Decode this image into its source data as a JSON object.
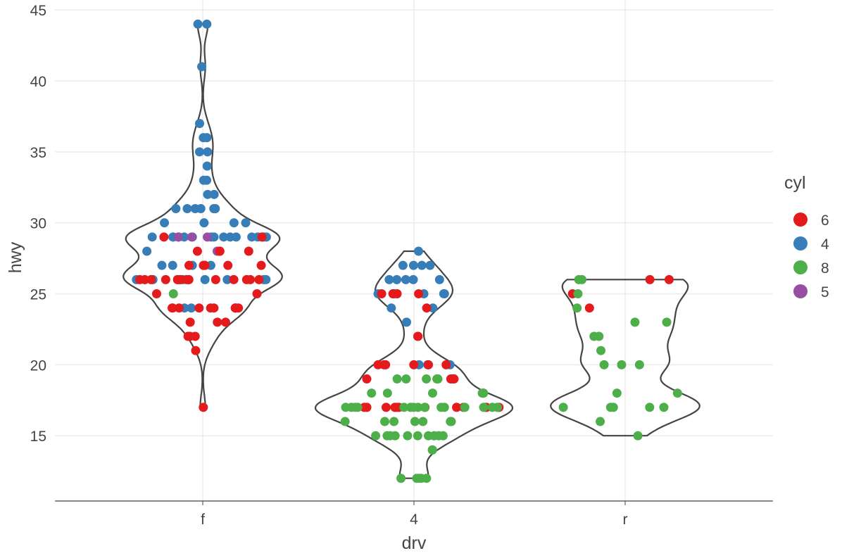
{
  "chart_data": {
    "type": "violin",
    "title": "",
    "xlabel": "drv",
    "ylabel": "hwy",
    "categories": [
      "f",
      "4",
      "r"
    ],
    "yticks": [
      15,
      20,
      25,
      30,
      35,
      40,
      45
    ],
    "ylim": [
      10.4,
      45.7
    ],
    "grid": true,
    "legend": {
      "title": "cyl",
      "placement": "right",
      "entries": [
        {
          "label": "6",
          "color": "#E41A1C"
        },
        {
          "label": "4",
          "color": "#377EB8"
        },
        {
          "label": "8",
          "color": "#4DAF4A"
        },
        {
          "label": "5",
          "color": "#984EA3"
        }
      ]
    },
    "violin_color": "#444444",
    "points": {
      "f": {
        "4": [
          44,
          44,
          41,
          37,
          36,
          36,
          35,
          35,
          34,
          33,
          33,
          32,
          32,
          31,
          31,
          31,
          31,
          31,
          31,
          31,
          30,
          30,
          30,
          30,
          29,
          29,
          29,
          29,
          29,
          29,
          29,
          29,
          29,
          29,
          29,
          29,
          29,
          29,
          29,
          29,
          29,
          29,
          28,
          27,
          27,
          27,
          27,
          27,
          26,
          26,
          26,
          26,
          26,
          26,
          26,
          26,
          26,
          24,
          24
        ],
        "6": [
          29,
          29,
          28,
          28,
          28,
          28,
          27,
          27,
          27,
          27,
          27,
          26,
          26,
          26,
          26,
          26,
          26,
          26,
          26,
          26,
          26,
          26,
          26,
          26,
          25,
          25,
          24,
          24,
          24,
          24,
          24,
          24,
          24,
          24,
          24,
          24,
          23,
          23,
          23,
          22,
          22,
          22,
          21,
          17
        ],
        "8": [
          25
        ],
        "5": [
          29,
          29,
          29,
          28
        ]
      },
      "4": {
        "4": [
          28,
          27,
          27,
          27,
          27,
          26,
          26,
          26,
          26,
          26,
          25,
          25,
          25,
          25,
          24,
          24,
          23,
          20,
          20,
          20
        ],
        "6": [
          25,
          25,
          25,
          25,
          25,
          24,
          22,
          22,
          20,
          20,
          20,
          20,
          20,
          20,
          19,
          19,
          19,
          19,
          18,
          17,
          17,
          17,
          17,
          17,
          17,
          17,
          17,
          17,
          17,
          17,
          17
        ],
        "8": [
          19,
          19,
          19,
          19,
          19,
          18,
          18,
          18,
          18,
          18,
          17,
          17,
          17,
          17,
          17,
          17,
          17,
          17,
          17,
          17,
          17,
          17,
          17,
          17,
          17,
          16,
          16,
          16,
          16,
          16,
          16,
          16,
          15,
          15,
          15,
          15,
          15,
          15,
          15,
          15,
          15,
          15,
          14,
          14,
          12,
          12,
          12,
          12,
          12
        ]
      },
      "r": {
        "6": [
          26,
          26,
          25,
          24
        ],
        "8": [
          26,
          26,
          25,
          24,
          23,
          23,
          22,
          22,
          21,
          20,
          20,
          20,
          18,
          18,
          17,
          17,
          17,
          17,
          17,
          16,
          15
        ]
      }
    }
  }
}
